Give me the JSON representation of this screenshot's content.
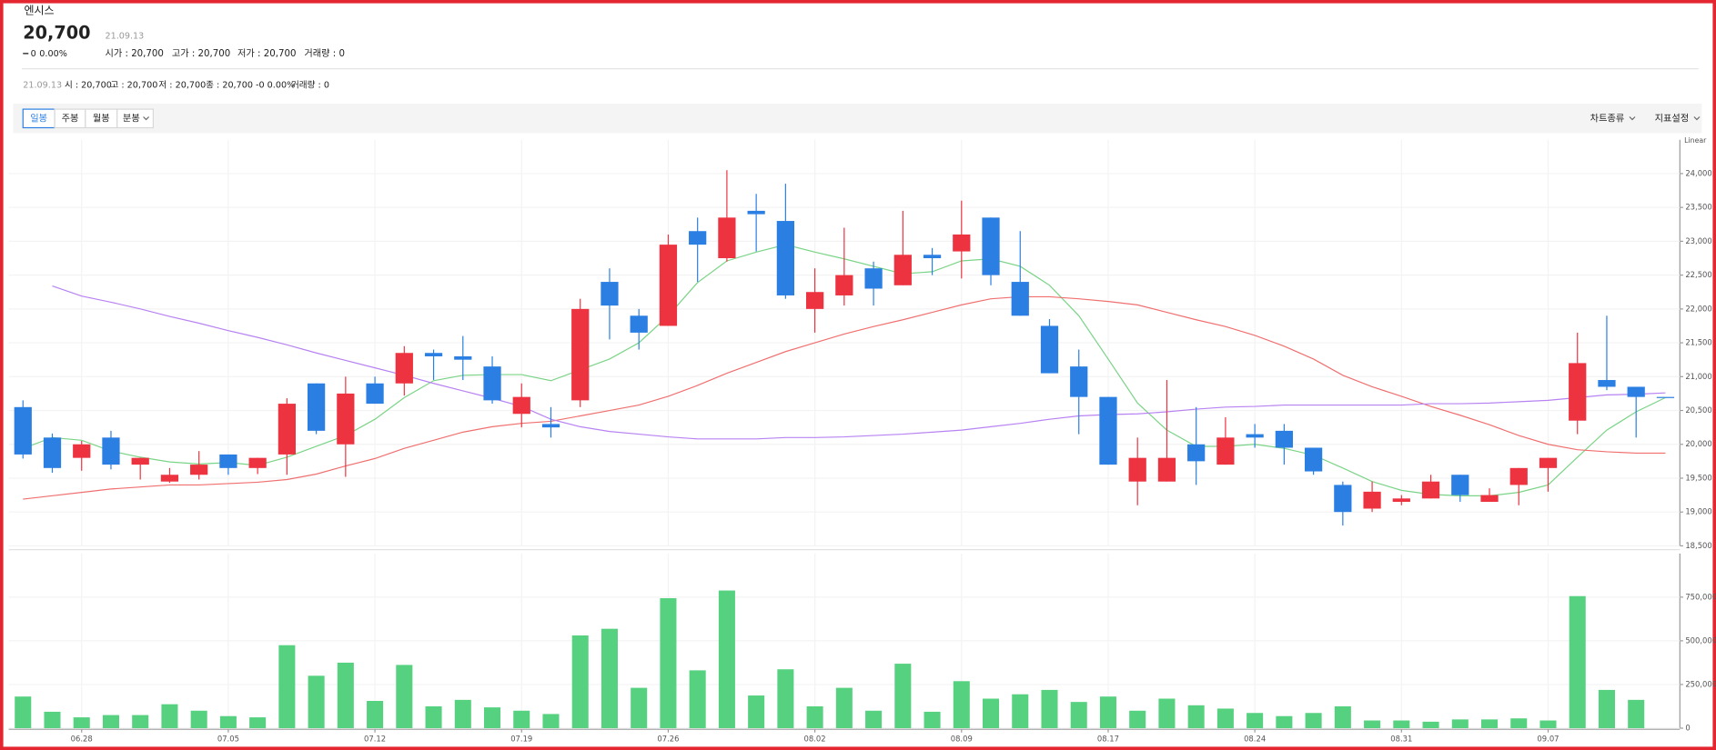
{
  "header": {
    "name": "엔시스",
    "price": "20,700",
    "change": "0",
    "change_rate": "0.00%",
    "date": "21.09.13",
    "quotes": [
      "시가 : 20,700",
      "고가 : 20,700",
      "저가 : 20,700",
      "거래량 : 0"
    ]
  },
  "summary": {
    "date": "21.09.13",
    "items": [
      "시 : 20,700",
      "고 : 20,700",
      "저 : 20,700",
      "종 : 20,700 -0 0.00%",
      "거래량 : 0"
    ]
  },
  "toolbar": {
    "periods": [
      "일봉",
      "주봉",
      "월봉",
      "분봉"
    ],
    "options": [
      "차트종류",
      "지표설정"
    ]
  },
  "chart_data": [
    {
      "type": "candlestick",
      "scale_label": "Linear",
      "up_color": "#ee3340",
      "down_color": "#2b7fe3",
      "open": [
        20550,
        20100,
        19800,
        20100,
        19700,
        19450,
        19550,
        19850,
        19650,
        19850,
        20900,
        20000,
        20900,
        20900,
        21350,
        21300,
        21150,
        20450,
        20300,
        20650,
        22400,
        21900,
        21750,
        23150,
        22750,
        23450,
        23300,
        22000,
        22200,
        22600,
        22350,
        22800,
        22850,
        23350,
        22400,
        21750,
        21150,
        20700,
        19450,
        19450,
        20000,
        19700,
        20150,
        20200,
        19950,
        19400,
        19050,
        19150,
        19200,
        19550,
        19150,
        19400,
        19650,
        20350,
        20950,
        20850,
        20700
      ],
      "high": [
        20650,
        20160,
        20050,
        20200,
        19800,
        19650,
        19900,
        19850,
        19800,
        20680,
        20900,
        21000,
        21000,
        21450,
        21400,
        21600,
        21300,
        20900,
        20550,
        22150,
        22600,
        22000,
        23100,
        23350,
        24050,
        23700,
        23850,
        22600,
        23200,
        22700,
        23450,
        22900,
        23600,
        23350,
        23150,
        21850,
        21400,
        20700,
        20100,
        20950,
        20550,
        20400,
        20300,
        20300,
        19950,
        19450,
        19450,
        19250,
        19550,
        19550,
        19350,
        19650,
        19800,
        21650,
        21900,
        20850,
        20700
      ],
      "low": [
        19790,
        19580,
        19610,
        19630,
        19480,
        19430,
        19480,
        19550,
        19560,
        19550,
        20150,
        19520,
        20600,
        20720,
        20950,
        20950,
        20600,
        20250,
        20100,
        20550,
        21550,
        21400,
        21750,
        22400,
        22700,
        22850,
        22150,
        21650,
        22050,
        22050,
        22350,
        22500,
        22450,
        22350,
        21900,
        21050,
        20150,
        19700,
        19100,
        19450,
        19400,
        19700,
        19950,
        19700,
        19550,
        18800,
        19000,
        19100,
        19200,
        19150,
        19150,
        19100,
        19300,
        20150,
        20800,
        20100,
        20700
      ],
      "close": [
        19850,
        19650,
        20000,
        19700,
        19800,
        19550,
        19700,
        19650,
        19800,
        20600,
        20200,
        20750,
        20600,
        21350,
        21300,
        21250,
        20650,
        20700,
        20250,
        22000,
        22050,
        21650,
        22950,
        22950,
        23350,
        23400,
        22200,
        22250,
        22500,
        22300,
        22800,
        22750,
        23100,
        22500,
        21900,
        21050,
        20700,
        19700,
        19800,
        19800,
        19750,
        20100,
        20100,
        19950,
        19600,
        19000,
        19300,
        19200,
        19450,
        19250,
        19250,
        19650,
        19800,
        21200,
        20850,
        20700,
        20700
      ],
      "lines": [
        {
          "color": "#7ad486",
          "values": [
            19940,
            20100,
            20060,
            19900,
            19810,
            19740,
            19710,
            19730,
            19690,
            19810,
            19970,
            20130,
            20370,
            20690,
            20940,
            21020,
            21030,
            21030,
            20940,
            21100,
            21260,
            21500,
            21900,
            22390,
            22710,
            22840,
            22950,
            22840,
            22740,
            22630,
            22520,
            22550,
            22710,
            22740,
            22630,
            22350,
            21900,
            21260,
            20610,
            20210,
            19970,
            19970,
            20000,
            19940,
            19840,
            19650,
            19450,
            19320,
            19260,
            19240,
            19240,
            19290,
            19400,
            19810,
            20210,
            20480,
            20690
          ]
        },
        {
          "color": "#f07070",
          "values": [
            19190,
            19240,
            19290,
            19340,
            19370,
            19400,
            19400,
            19420,
            19440,
            19480,
            19560,
            19680,
            19790,
            19940,
            20060,
            20180,
            20260,
            20310,
            20340,
            20420,
            20500,
            20580,
            20710,
            20870,
            21050,
            21210,
            21370,
            21500,
            21630,
            21740,
            21840,
            21950,
            22060,
            22150,
            22180,
            22180,
            22150,
            22110,
            22060,
            21950,
            21840,
            21740,
            21610,
            21450,
            21260,
            21020,
            20850,
            20710,
            20560,
            20430,
            20290,
            20130,
            20000,
            19920,
            19890,
            19870,
            19870
          ]
        },
        {
          "color": "#b783f2",
          "values": [
            null,
            22340,
            22190,
            22100,
            22000,
            21890,
            21790,
            21680,
            21580,
            21470,
            21350,
            21240,
            21130,
            21020,
            20900,
            20790,
            20680,
            20560,
            20370,
            20260,
            20190,
            20150,
            20110,
            20080,
            20080,
            20080,
            20100,
            20100,
            20110,
            20130,
            20150,
            20180,
            20210,
            20260,
            20310,
            20370,
            20420,
            20440,
            20450,
            20480,
            20520,
            20550,
            20560,
            20580,
            20580,
            20580,
            20580,
            20580,
            20600,
            20600,
            20610,
            20630,
            20650,
            20690,
            20730,
            20740,
            20760
          ]
        }
      ],
      "ylim": [
        18500,
        24500
      ],
      "yticks": [
        {
          "value": 18500,
          "label": "18,500"
        },
        {
          "value": 19000,
          "label": "19,000"
        },
        {
          "value": 19500,
          "label": "19,500"
        },
        {
          "value": 20000,
          "label": "20,000"
        },
        {
          "value": 20500,
          "label": "20,500"
        },
        {
          "value": 21000,
          "label": "21,000"
        },
        {
          "value": 21500,
          "label": "21,500"
        },
        {
          "value": 22000,
          "label": "22,000"
        },
        {
          "value": 22500,
          "label": "22,500"
        },
        {
          "value": 23000,
          "label": "23,000"
        },
        {
          "value": 23500,
          "label": "23,500"
        },
        {
          "value": 24000,
          "label": "24,000"
        }
      ],
      "grid": true
    },
    {
      "type": "bar",
      "color": "#55d17f",
      "categories": [
        null,
        null,
        "06.28",
        null,
        null,
        null,
        null,
        "07.05",
        null,
        null,
        null,
        null,
        "07.12",
        null,
        null,
        null,
        null,
        "07.19",
        null,
        null,
        null,
        null,
        "07.26",
        null,
        null,
        null,
        null,
        "08.02",
        null,
        null,
        null,
        null,
        "08.09",
        null,
        null,
        null,
        null,
        "08.17",
        null,
        null,
        null,
        null,
        "08.24",
        null,
        null,
        null,
        null,
        "08.31",
        null,
        null,
        null,
        null,
        "09.07",
        null,
        null,
        null,
        null
      ],
      "values": [
        181000,
        94000,
        62000,
        75000,
        75000,
        137000,
        100000,
        69000,
        62000,
        475000,
        300000,
        375000,
        156000,
        362000,
        125000,
        162000,
        119000,
        100000,
        81000,
        531000,
        569000,
        231000,
        744000,
        331000,
        788000,
        187000,
        337000,
        125000,
        231000,
        100000,
        369000,
        94000,
        269000,
        169000,
        194000,
        219000,
        150000,
        181000,
        100000,
        169000,
        131000,
        112000,
        87000,
        69000,
        87000,
        125000,
        44000,
        44000,
        37000,
        50000,
        50000,
        56000,
        44000,
        756000,
        219000,
        162000,
        0
      ],
      "ylim": [
        0,
        1000000
      ],
      "yticks": [
        0,
        {
          "value": 250000,
          "label": "250,000"
        },
        {
          "value": 500000,
          "label": "500,000"
        },
        {
          "value": 750000,
          "label": "750,000"
        }
      ],
      "grid": true
    }
  ]
}
